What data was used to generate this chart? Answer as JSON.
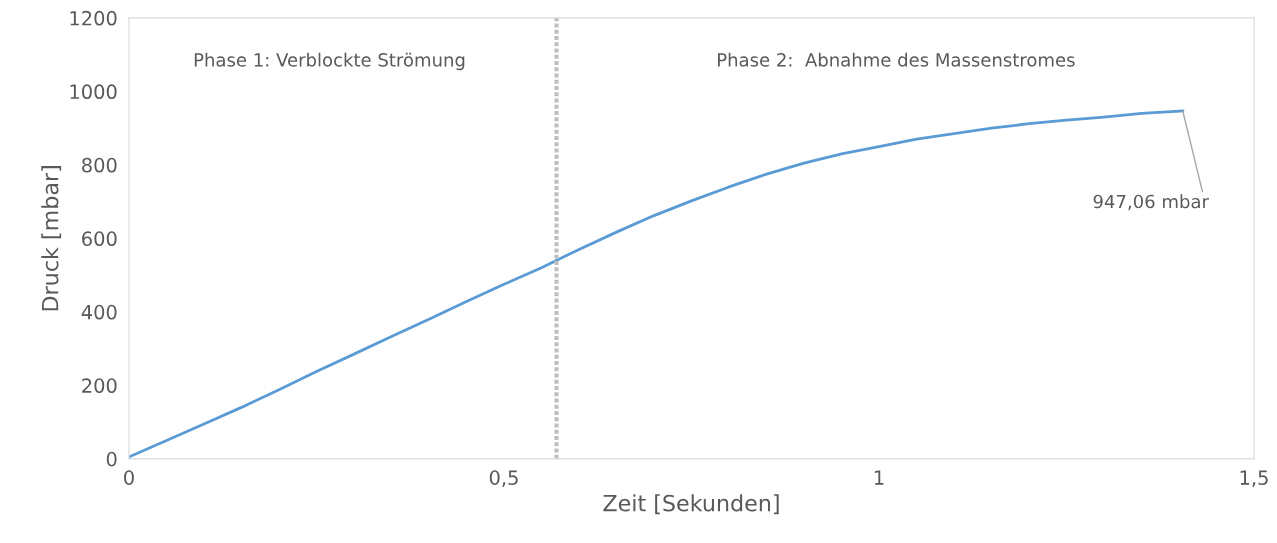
{
  "chart_data": {
    "type": "line",
    "xlabel": "Zeit [Sekunden]",
    "ylabel": "Druck [mbar]",
    "series": [
      {
        "color": "#5b9bd5",
        "x": [
          0,
          0.05,
          0.1,
          0.15,
          0.2,
          0.25,
          0.3,
          0.35,
          0.4,
          0.45,
          0.5,
          0.55,
          0.6,
          0.65,
          0.7,
          0.75,
          0.8,
          0.85,
          0.9,
          0.95,
          1.0,
          1.05,
          1.1,
          1.15,
          1.2,
          1.25,
          1.3,
          1.35,
          1.405
        ],
        "values": [
          5,
          50,
          95,
          140,
          188,
          238,
          285,
          333,
          380,
          428,
          475,
          520,
          570,
          617,
          662,
          702,
          740,
          775,
          805,
          830,
          850,
          870,
          885,
          900,
          912,
          922,
          930,
          940,
          947.06
        ]
      }
    ],
    "xlim": [
      0,
      1.5
    ],
    "xticks": [
      0,
      {
        "value": 0.5,
        "label": "0,5"
      },
      1,
      {
        "value": 1.5,
        "label": "1,5"
      }
    ],
    "ylim": [
      0,
      1200
    ],
    "yticks": [
      0,
      200,
      400,
      600,
      800,
      1000,
      1200
    ],
    "grid": false,
    "legend": false,
    "marker": "none",
    "line_style": "solid",
    "ref_lines": [
      {
        "axis": "x",
        "value": 0.57,
        "color": "#bfbfbf",
        "line_style": "dashed"
      }
    ],
    "annotations": [
      "Phase 1: Verblockte Strömung",
      "Phase 2:  Abnahme des Massenstromes",
      {
        "text": "947,06 mbar",
        "x": 1.405,
        "y": 947.06
      }
    ]
  }
}
